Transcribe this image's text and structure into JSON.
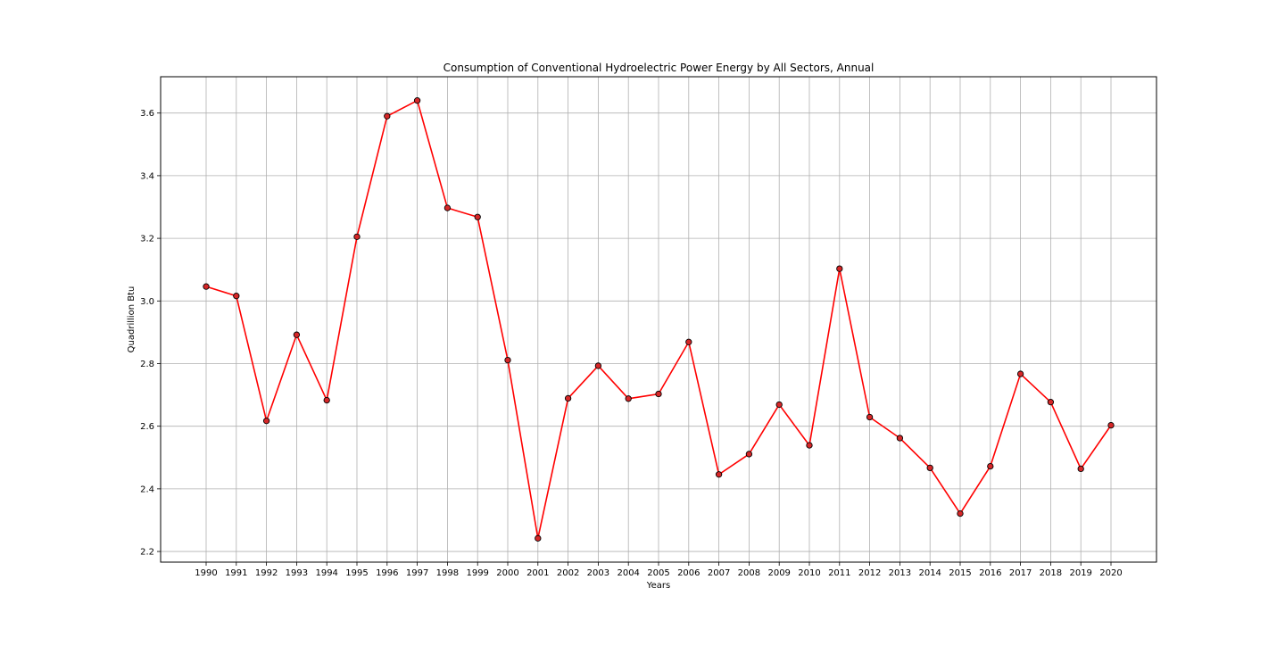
{
  "chart_data": {
    "type": "line",
    "title": "Consumption of Conventional Hydroelectric Power Energy by All Sectors, Annual",
    "xlabel": "Years",
    "ylabel": "Quadrillion Btu",
    "x": [
      "1990",
      "1991",
      "1992",
      "1993",
      "1994",
      "1995",
      "1996",
      "1997",
      "1998",
      "1999",
      "2000",
      "2001",
      "2002",
      "2003",
      "2004",
      "2005",
      "2006",
      "2007",
      "2008",
      "2009",
      "2010",
      "2011",
      "2012",
      "2013",
      "2014",
      "2015",
      "2016",
      "2017",
      "2018",
      "2019",
      "2020"
    ],
    "series": [
      {
        "values": [
          3.046,
          3.016,
          2.617,
          2.892,
          2.683,
          3.205,
          3.59,
          3.64,
          3.297,
          3.268,
          2.811,
          2.242,
          2.689,
          2.793,
          2.688,
          2.703,
          2.869,
          2.446,
          2.511,
          2.669,
          2.539,
          3.103,
          2.629,
          2.562,
          2.467,
          2.321,
          2.472,
          2.767,
          2.677,
          2.464,
          2.603
        ],
        "color": "#ff0000",
        "marker_fill": "#d62728",
        "marker_edge": "#000000"
      }
    ],
    "ylim": [
      2.166,
      3.716
    ],
    "yticks": [
      2.2,
      2.4,
      2.6,
      2.8,
      3.0,
      3.2,
      3.4,
      3.6
    ],
    "ytick_labels": [
      "2.2",
      "2.4",
      "2.6",
      "2.8",
      "3.0",
      "3.2",
      "3.4",
      "3.6"
    ],
    "grid": true,
    "legend": "none"
  }
}
